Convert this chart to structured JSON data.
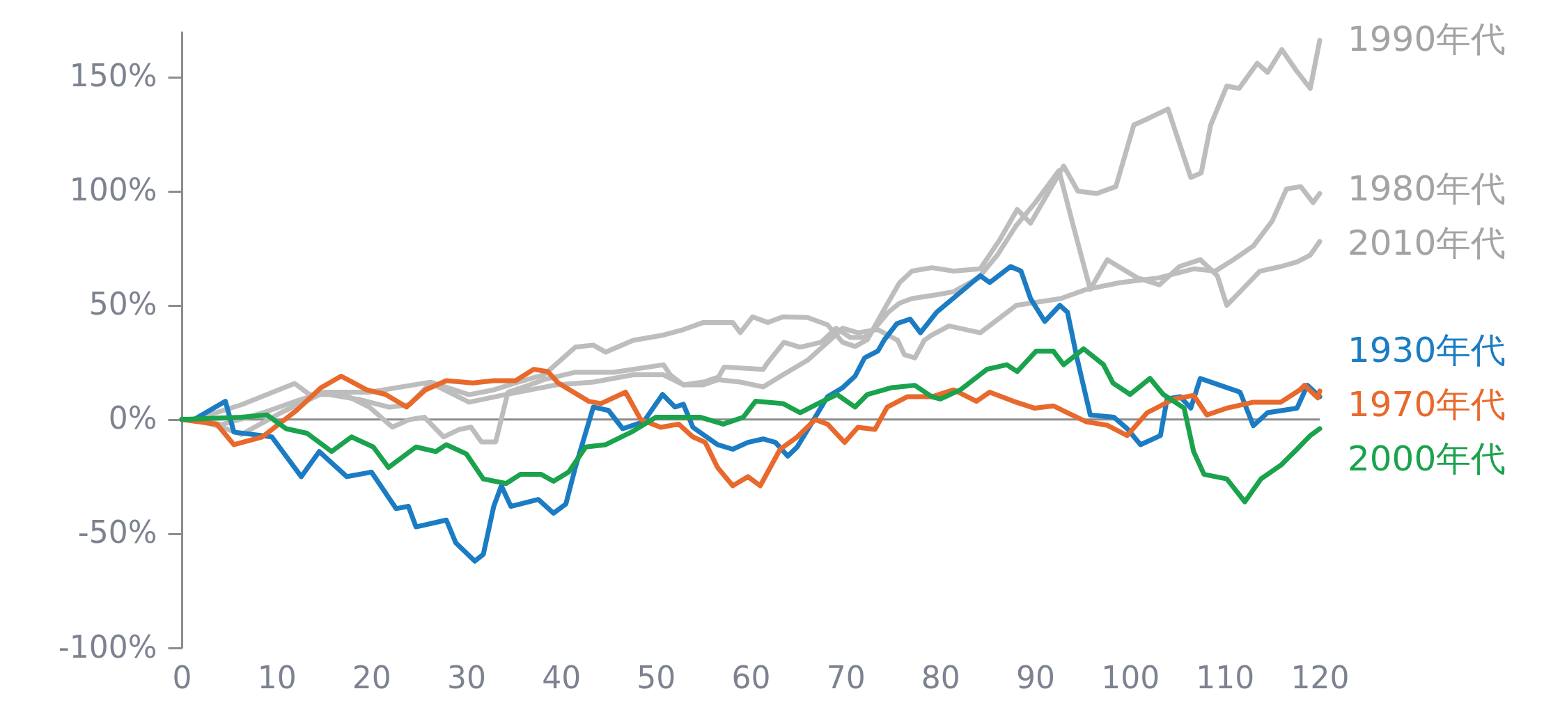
{
  "chart_data": {
    "type": "line",
    "xlim": [
      0,
      120
    ],
    "xticks": [
      0,
      10,
      20,
      30,
      40,
      50,
      60,
      70,
      80,
      90,
      100,
      110,
      120
    ],
    "ylim": [
      -100,
      170
    ],
    "yticks": [
      {
        "value": -100,
        "label": "-100%"
      },
      {
        "value": -50,
        "label": "-50%"
      },
      {
        "value": 0,
        "label": "0%"
      },
      {
        "value": 50,
        "label": "50%"
      },
      {
        "value": 100,
        "label": "100%"
      },
      {
        "value": 150,
        "label": "150%"
      }
    ],
    "grid": false,
    "legend": false,
    "line_style": "solid",
    "marker": "none",
    "ref_lines": [
      {
        "axis": "y",
        "value": 0,
        "color": "#8c8c8c"
      }
    ],
    "series": [
      {
        "name": "1990年代",
        "color": "#bdbdbd",
        "x": [
          0,
          1.3,
          6.3,
          11.9,
          13.5,
          15.6,
          18.8,
          21.9,
          24,
          26.3,
          30.3,
          32.9,
          35.4,
          38.2,
          41.5,
          43.4,
          44.7,
          47.6,
          50.8,
          52.9,
          55,
          58.1,
          58.9,
          60.2,
          61.8,
          63.4,
          66,
          68.1,
          69.7,
          71,
          72.3,
          73.9,
          75.7,
          77,
          79.1,
          81.4,
          84.2,
          86.3,
          88.1,
          89.5,
          93,
          94.5,
          96.5,
          98.5,
          100.4,
          102,
          104,
          106.4,
          107.5,
          108.5,
          110.2,
          111.5,
          113.4,
          114.5,
          116,
          117.5,
          119,
          120
        ],
        "values": [
          0,
          0,
          6.5,
          15.8,
          10.9,
          10.9,
          8.7,
          5.4,
          6.5,
          16.3,
          10.9,
          13,
          16.3,
          19.6,
          31.7,
          32.6,
          29.5,
          34.7,
          37,
          39.4,
          42.5,
          42.5,
          38.1,
          45,
          42.5,
          45,
          44.7,
          41.5,
          33.8,
          32,
          35,
          47,
          60,
          65,
          66.5,
          65,
          66,
          79,
          92,
          86,
          111,
          100,
          99,
          102,
          129,
          132,
          136,
          106,
          108,
          129,
          146,
          145,
          156,
          152,
          162,
          153,
          145,
          166
        ]
      },
      {
        "name": "1980年代",
        "color": "#bdbdbd",
        "x": [
          0,
          1.3,
          4.2,
          8.8,
          12.5,
          15.1,
          19.8,
          26.1,
          30.3,
          34.1,
          39.5,
          43.4,
          47.6,
          50.8,
          52.9,
          55,
          56.6,
          58.9,
          61.3,
          63.4,
          66,
          68.1,
          69.7,
          71.3,
          73.4,
          75.5,
          76.2,
          77.3,
          78.3,
          79.1,
          80.9,
          84.2,
          88,
          92.7,
          95.4,
          99,
          103,
          106.7,
          109,
          110.9,
          113,
          115,
          116.5,
          118,
          119.3,
          120
        ],
        "values": [
          0,
          0,
          -2.2,
          3.3,
          8.7,
          12,
          12,
          16.3,
          7.6,
          10.9,
          15.2,
          16.4,
          19.6,
          19.6,
          15.2,
          15.2,
          17.5,
          16.4,
          14.3,
          19.6,
          26,
          33.8,
          40,
          38,
          39.4,
          34.7,
          28.4,
          27,
          34.7,
          37,
          41,
          38,
          50,
          53,
          57,
          60,
          62,
          66,
          65,
          70,
          76,
          87,
          101,
          102,
          95,
          99
        ]
      },
      {
        "name": "2010年代",
        "color": "#bdbdbd",
        "x": [
          0,
          1.3,
          4.2,
          6.3,
          10.6,
          15.1,
          17.7,
          19.8,
          22.2,
          24,
          25.6,
          27.6,
          29.2,
          30.5,
          31.6,
          33.1,
          34.4,
          36.7,
          38.2,
          41.5,
          45.5,
          50.8,
          51.5,
          52.9,
          55,
          56.6,
          57.2,
          61.3,
          61.8,
          63.5,
          65.2,
          67.4,
          69,
          70.5,
          72,
          73.4,
          74.5,
          75.7,
          77,
          79.5,
          81.4,
          84,
          86,
          88,
          90,
          92.5,
          94,
          95.8,
          97.6,
          100.8,
          103.1,
          105.2,
          107.4,
          109.2,
          110.2,
          111.6,
          113.7,
          115.9,
          117.6,
          119,
          120
        ],
        "values": [
          0,
          0,
          -3.3,
          -6.5,
          3.3,
          12,
          9.8,
          5.4,
          -3.3,
          0,
          1,
          -7.6,
          -4.4,
          -3.3,
          -9.8,
          -9.8,
          12,
          15.2,
          17.5,
          20.7,
          20.7,
          24,
          19.6,
          15.2,
          16.4,
          18.6,
          23,
          22,
          25,
          33.8,
          31.7,
          33.8,
          40,
          36,
          36,
          41.5,
          47,
          51,
          53,
          54.6,
          56,
          62,
          72,
          85,
          95,
          109,
          85,
          57,
          70,
          62,
          59,
          67,
          70,
          63,
          50,
          56,
          65,
          67,
          69,
          72,
          78
        ]
      },
      {
        "name": "1930年代",
        "color": "#1b7cc3",
        "x": [
          0,
          1.3,
          4.6,
          5.5,
          9.5,
          12.6,
          14.5,
          17.4,
          20,
          22.6,
          23.9,
          24.7,
          27.9,
          28.9,
          30.9,
          31.8,
          32.9,
          33.7,
          34.7,
          37.6,
          39.2,
          40.5,
          41.5,
          43.4,
          45,
          46.5,
          48.7,
          50.7,
          52,
          52.9,
          53.9,
          56.5,
          58.1,
          59.7,
          61.3,
          62.6,
          63.9,
          64.9,
          66.5,
          68.1,
          69.7,
          71,
          72,
          73.4,
          74.1,
          75.4,
          76.8,
          77.9,
          79.6,
          84.2,
          85.2,
          87.4,
          88.5,
          89.5,
          91,
          92.6,
          93.4,
          94.4,
          95.8,
          98.3,
          99.7,
          101.1,
          103.2,
          103.9,
          105.3,
          106.4,
          107.4,
          108.8,
          111.6,
          113,
          114.5,
          117.6,
          118.7,
          120
        ],
        "values": [
          0,
          0,
          8,
          -5.5,
          -7.6,
          -25,
          -14,
          -25,
          -23,
          -39,
          -38,
          -47,
          -44,
          -54,
          -62,
          -59,
          -38,
          -29,
          -38,
          -35,
          -41,
          -37,
          -21,
          5.5,
          4,
          -4,
          -1,
          11,
          5.5,
          6.7,
          -3.4,
          -11,
          -13,
          -10,
          -8.5,
          -10,
          -16,
          -12,
          -1,
          10,
          14,
          19,
          27,
          30,
          35,
          42,
          44,
          38,
          47,
          63,
          60,
          67,
          65,
          53,
          43,
          50,
          47,
          27,
          2,
          1,
          -4,
          -11,
          -7,
          9,
          10,
          5,
          18,
          16,
          12,
          -2.7,
          3,
          5,
          15,
          10
        ]
      },
      {
        "name": "1970年代",
        "color": "#e8692c",
        "x": [
          0,
          3.7,
          5.5,
          8.5,
          12.1,
          14.7,
          16.8,
          19.5,
          21.5,
          23.7,
          25.7,
          27.9,
          30.7,
          32.9,
          35.2,
          37.1,
          38.6,
          39.7,
          42.9,
          44.2,
          46.8,
          48.4,
          50.5,
          52.4,
          53.9,
          55.2,
          56.5,
          58.1,
          59.7,
          61,
          63.1,
          64.9,
          66.8,
          68.1,
          69.9,
          71.3,
          73.1,
          74.4,
          76.5,
          79.1,
          81.4,
          83.8,
          85.2,
          87.7,
          89.9,
          91.9,
          95.4,
          97.6,
          99.7,
          101.8,
          104.6,
          106.7,
          108.1,
          110.2,
          113,
          115.9,
          117.9,
          118.4,
          119.8,
          120
        ],
        "values": [
          0,
          -2,
          -11,
          -7.6,
          4,
          14,
          19,
          13,
          11,
          5.5,
          13,
          17,
          16,
          17,
          17,
          22,
          21,
          16,
          8,
          7,
          12,
          0,
          -3.4,
          -2,
          -7.6,
          -10,
          -21,
          -29,
          -25,
          -29,
          -13,
          -7.6,
          0,
          -2,
          -10,
          -3.4,
          -4.3,
          5.5,
          10,
          10,
          13,
          8,
          12,
          8,
          5,
          6,
          -1,
          -2.5,
          -7,
          3,
          9,
          10.6,
          2,
          5,
          7.6,
          7.6,
          13,
          15,
          9.5,
          12.5
        ]
      },
      {
        "name": "2000年代",
        "color": "#1aa24c",
        "x": [
          0,
          6.3,
          9,
          11,
          13.2,
          15.8,
          17.9,
          20.2,
          21.8,
          24.7,
          26.8,
          27.9,
          30,
          31.8,
          34.2,
          35.7,
          37.9,
          39.2,
          40.8,
          42.6,
          44.7,
          47.4,
          50,
          52.4,
          54.7,
          57.1,
          59.2,
          60.5,
          63.4,
          65.2,
          67.1,
          69.1,
          71,
          72.3,
          74.9,
          77.3,
          79.1,
          80,
          82.1,
          84.9,
          87,
          88.1,
          90.1,
          91.9,
          93,
          95.1,
          97.2,
          98.2,
          100,
          102.1,
          103.5,
          105.7,
          106.7,
          107.8,
          110.2,
          112.1,
          113.8,
          115.9,
          117.6,
          119,
          120
        ],
        "values": [
          0,
          1,
          2,
          -4,
          -6,
          -14,
          -7.6,
          -12,
          -21,
          -12,
          -14,
          -11,
          -15,
          -26,
          -28,
          -24,
          -24,
          -27,
          -23,
          -12,
          -11,
          -5.5,
          1,
          1,
          1,
          -2,
          1,
          8,
          7,
          3,
          7,
          11,
          5.5,
          11,
          14,
          15,
          10,
          9,
          13,
          22,
          24,
          21,
          30,
          30,
          24,
          31,
          24,
          16,
          11,
          18,
          11,
          5,
          -14,
          -24,
          -26,
          -36,
          -26,
          -20,
          -13,
          -7,
          -4
        ]
      }
    ]
  }
}
